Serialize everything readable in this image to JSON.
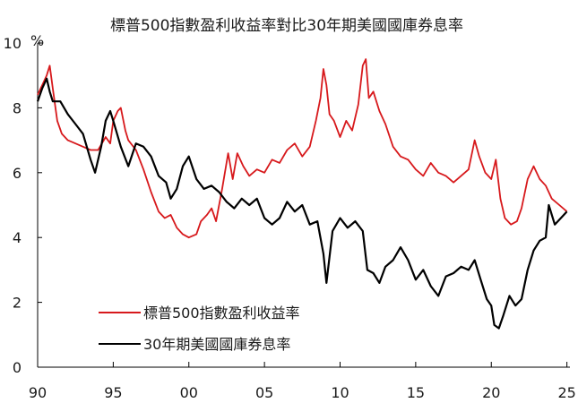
{
  "chart_data": {
    "type": "line",
    "title": "標普500指數盈利收益率對比30年期美國國庫券息率",
    "y_unit": "%",
    "xlabel": "",
    "ylabel": "",
    "xlim": [
      1990,
      2025.2
    ],
    "ylim": [
      0,
      10
    ],
    "x_ticks": [
      1990,
      1995,
      2000,
      2005,
      2010,
      2015,
      2020,
      2025
    ],
    "x_tick_labels": [
      "90",
      "95",
      "00",
      "05",
      "10",
      "15",
      "20",
      "25"
    ],
    "y_ticks": [
      0,
      2,
      4,
      6,
      8,
      10
    ],
    "y_tick_labels": [
      "0",
      "2",
      "4",
      "6",
      "8",
      "10"
    ],
    "grid": false,
    "legend_position": "bottom-left",
    "series": [
      {
        "name": "標普500指數盈利收益率",
        "color": "#d7191c",
        "x": [
          1990.0,
          1990.3,
          1990.6,
          1990.8,
          1991.0,
          1991.3,
          1991.6,
          1992.0,
          1992.5,
          1993.0,
          1993.5,
          1994.0,
          1994.5,
          1994.8,
          1995.0,
          1995.3,
          1995.5,
          1995.8,
          1996.0,
          1996.5,
          1997.0,
          1997.5,
          1998.0,
          1998.4,
          1998.8,
          1999.2,
          1999.6,
          2000.0,
          2000.5,
          2000.8,
          2001.2,
          2001.5,
          2001.8,
          2002.2,
          2002.6,
          2002.9,
          2003.2,
          2003.6,
          2004.0,
          2004.5,
          2005.0,
          2005.5,
          2006.0,
          2006.5,
          2007.0,
          2007.5,
          2008.0,
          2008.4,
          2008.7,
          2008.9,
          2009.1,
          2009.3,
          2009.6,
          2010.0,
          2010.4,
          2010.8,
          2011.2,
          2011.5,
          2011.7,
          2011.9,
          2012.2,
          2012.6,
          2013.0,
          2013.5,
          2014.0,
          2014.5,
          2015.0,
          2015.5,
          2016.0,
          2016.5,
          2017.0,
          2017.5,
          2018.0,
          2018.5,
          2018.9,
          2019.2,
          2019.6,
          2020.0,
          2020.3,
          2020.6,
          2020.9,
          2021.3,
          2021.7,
          2022.0,
          2022.4,
          2022.8,
          2023.2,
          2023.6,
          2024.0,
          2024.5,
          2025.0
        ],
        "y": [
          8.4,
          8.7,
          9.0,
          9.3,
          8.6,
          7.6,
          7.2,
          7.0,
          6.9,
          6.8,
          6.7,
          6.7,
          7.1,
          6.9,
          7.6,
          7.9,
          8.0,
          7.3,
          7.0,
          6.7,
          6.1,
          5.4,
          4.8,
          4.6,
          4.7,
          4.3,
          4.1,
          4.0,
          4.1,
          4.5,
          4.7,
          4.9,
          4.5,
          5.5,
          6.6,
          5.8,
          6.6,
          6.2,
          5.9,
          6.1,
          6.0,
          6.4,
          6.3,
          6.7,
          6.9,
          6.5,
          6.8,
          7.6,
          8.3,
          9.2,
          8.7,
          7.8,
          7.6,
          7.1,
          7.6,
          7.3,
          8.1,
          9.3,
          9.5,
          8.3,
          8.5,
          7.9,
          7.5,
          6.8,
          6.5,
          6.4,
          6.1,
          5.9,
          6.3,
          6.0,
          5.9,
          5.7,
          5.9,
          6.1,
          7.0,
          6.5,
          6.0,
          5.8,
          6.4,
          5.2,
          4.6,
          4.4,
          4.5,
          4.9,
          5.8,
          6.2,
          5.8,
          5.6,
          5.2,
          5.0,
          4.8
        ]
      },
      {
        "name": "30年期美國國庫券息率",
        "color": "#000000",
        "x": [
          1990.0,
          1990.3,
          1990.6,
          1990.8,
          1991.0,
          1991.5,
          1992.0,
          1992.5,
          1993.0,
          1993.5,
          1993.8,
          1994.2,
          1994.5,
          1994.8,
          1995.0,
          1995.5,
          1996.0,
          1996.5,
          1997.0,
          1997.5,
          1998.0,
          1998.5,
          1998.8,
          1999.2,
          1999.6,
          2000.0,
          2000.5,
          2001.0,
          2001.5,
          2002.0,
          2002.5,
          2003.0,
          2003.5,
          2004.0,
          2004.5,
          2005.0,
          2005.5,
          2006.0,
          2006.5,
          2007.0,
          2007.5,
          2008.0,
          2008.5,
          2008.9,
          2009.1,
          2009.5,
          2010.0,
          2010.5,
          2011.0,
          2011.5,
          2011.8,
          2012.2,
          2012.6,
          2013.0,
          2013.5,
          2014.0,
          2014.5,
          2015.0,
          2015.5,
          2016.0,
          2016.5,
          2017.0,
          2017.5,
          2018.0,
          2018.5,
          2018.9,
          2019.3,
          2019.7,
          2020.0,
          2020.2,
          2020.5,
          2020.8,
          2021.2,
          2021.6,
          2022.0,
          2022.4,
          2022.8,
          2023.2,
          2023.6,
          2023.8,
          2024.2,
          2024.6,
          2025.0
        ],
        "y": [
          8.2,
          8.6,
          8.9,
          8.5,
          8.2,
          8.2,
          7.8,
          7.5,
          7.2,
          6.4,
          6.0,
          6.8,
          7.6,
          7.9,
          7.6,
          6.8,
          6.2,
          6.9,
          6.8,
          6.5,
          5.9,
          5.7,
          5.2,
          5.5,
          6.2,
          6.5,
          5.8,
          5.5,
          5.6,
          5.4,
          5.1,
          4.9,
          5.2,
          5.0,
          5.2,
          4.6,
          4.4,
          4.6,
          5.1,
          4.8,
          5.0,
          4.4,
          4.5,
          3.5,
          2.6,
          4.2,
          4.6,
          4.3,
          4.5,
          4.2,
          3.0,
          2.9,
          2.6,
          3.1,
          3.3,
          3.7,
          3.3,
          2.7,
          3.0,
          2.5,
          2.2,
          2.8,
          2.9,
          3.1,
          3.0,
          3.3,
          2.7,
          2.1,
          1.9,
          1.3,
          1.2,
          1.6,
          2.2,
          1.9,
          2.1,
          3.0,
          3.6,
          3.9,
          4.0,
          5.0,
          4.4,
          4.6,
          4.8
        ]
      }
    ]
  }
}
